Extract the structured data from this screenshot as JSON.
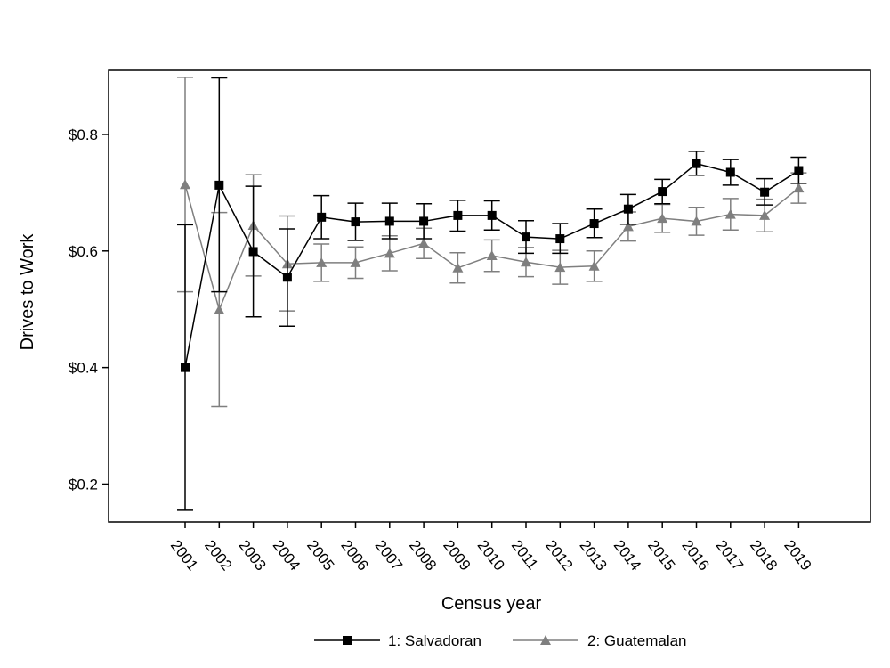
{
  "chart_data": {
    "type": "line",
    "xlabel": "Census year",
    "ylabel": "Drives to Work",
    "ylim": [
      0.135,
      0.91
    ],
    "yticks": [
      0.2,
      0.4,
      0.6,
      0.8
    ],
    "ytick_labels": [
      "$0.2",
      "$0.4",
      "$0.6",
      "$0.8"
    ],
    "x": [
      2001,
      2002,
      2003,
      2004,
      2005,
      2006,
      2007,
      2008,
      2009,
      2010,
      2011,
      2012,
      2013,
      2014,
      2015,
      2016,
      2017,
      2018,
      2019
    ],
    "x_labels": [
      "2001",
      "2002",
      "2003",
      "2004",
      "2005",
      "2006",
      "2007",
      "2008",
      "2009",
      "2010",
      "2011",
      "2012",
      "2013",
      "2014",
      "2015",
      "2016",
      "2017",
      "2018",
      "2019"
    ],
    "grid": false,
    "legend_position": "bottom",
    "series": [
      {
        "name": "1: Salvadoran",
        "color": "#000000",
        "marker": "square",
        "values": [
          0.4,
          0.713,
          0.599,
          0.555,
          0.658,
          0.65,
          0.651,
          0.651,
          0.661,
          0.661,
          0.624,
          0.621,
          0.647,
          0.672,
          0.702,
          0.75,
          0.735,
          0.701,
          0.738
        ],
        "lower": [
          0.155,
          0.53,
          0.487,
          0.471,
          0.621,
          0.618,
          0.621,
          0.621,
          0.634,
          0.636,
          0.596,
          0.596,
          0.623,
          0.646,
          0.681,
          0.73,
          0.713,
          0.679,
          0.716
        ],
        "upper": [
          0.645,
          0.897,
          0.711,
          0.638,
          0.695,
          0.682,
          0.682,
          0.681,
          0.687,
          0.686,
          0.652,
          0.647,
          0.672,
          0.697,
          0.723,
          0.771,
          0.757,
          0.724,
          0.761
        ]
      },
      {
        "name": "2: Guatemalan",
        "color": "#7f7f7f",
        "marker": "triangle",
        "values": [
          0.714,
          0.499,
          0.644,
          0.578,
          0.58,
          0.58,
          0.596,
          0.613,
          0.571,
          0.592,
          0.581,
          0.572,
          0.574,
          0.642,
          0.656,
          0.651,
          0.663,
          0.661,
          0.708
        ],
        "lower": [
          0.53,
          0.333,
          0.557,
          0.497,
          0.548,
          0.553,
          0.566,
          0.587,
          0.545,
          0.565,
          0.556,
          0.543,
          0.548,
          0.617,
          0.632,
          0.627,
          0.636,
          0.633,
          0.682
        ],
        "upper": [
          0.898,
          0.666,
          0.731,
          0.66,
          0.612,
          0.607,
          0.626,
          0.639,
          0.597,
          0.619,
          0.606,
          0.601,
          0.6,
          0.667,
          0.68,
          0.675,
          0.69,
          0.689,
          0.734
        ]
      }
    ]
  }
}
